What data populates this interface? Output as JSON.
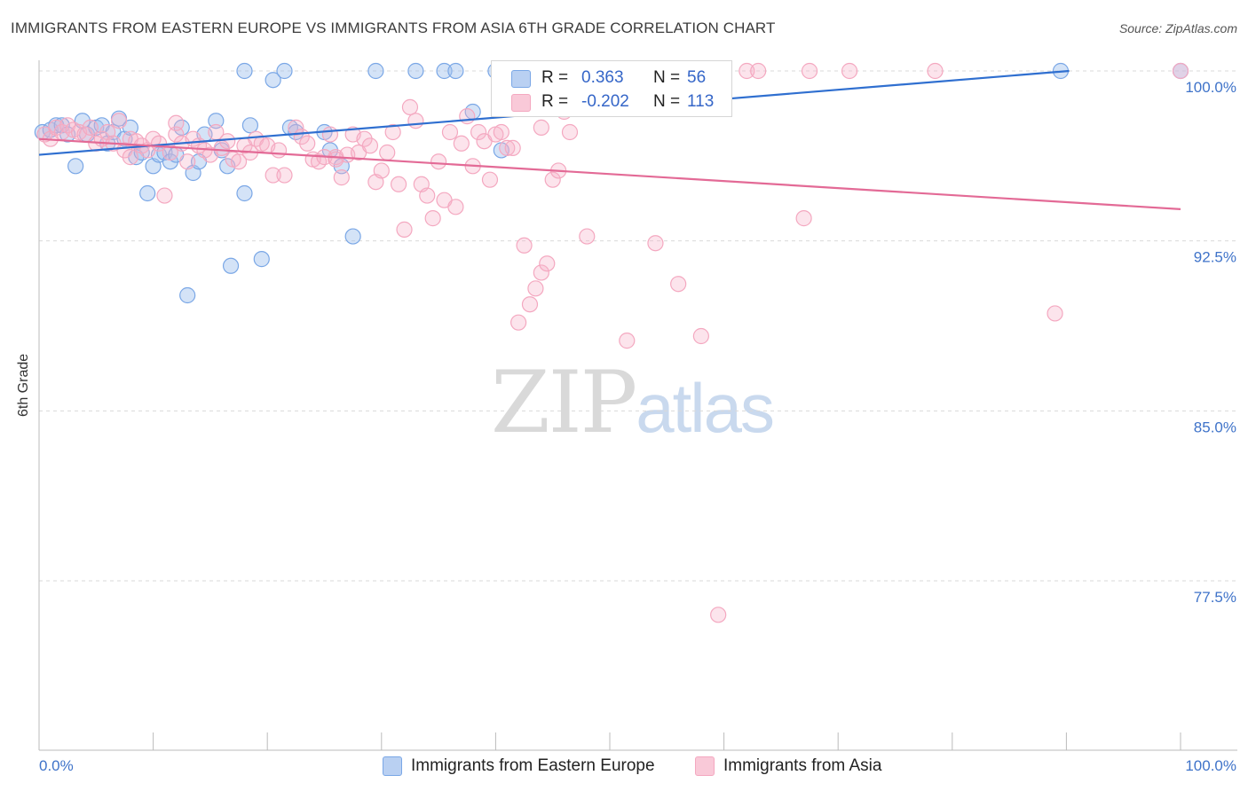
{
  "title": "IMMIGRANTS FROM EASTERN EUROPE VS IMMIGRANTS FROM ASIA 6TH GRADE CORRELATION CHART",
  "source": "Source: ZipAtlas.com",
  "watermark": {
    "zip": "ZIP",
    "atlas": "atlas"
  },
  "legend": {
    "rows": [
      {
        "r_label": "R =",
        "r_value": "0.363",
        "n_label": "N =",
        "n_value": "56"
      },
      {
        "r_label": "R =",
        "r_value": "-0.202",
        "n_label": "N =",
        "n_value": "113"
      }
    ]
  },
  "chart_data": {
    "type": "scatter",
    "ylabel": "6th Grade",
    "xlim": [
      0,
      100
    ],
    "ylim": [
      70,
      101
    ],
    "x_ticks": [
      "0.0%",
      "100.0%"
    ],
    "y_ticks": [
      {
        "value": 100,
        "label": "100.0%"
      },
      {
        "value": 92.5,
        "label": "92.5%"
      },
      {
        "value": 85,
        "label": "85.0%"
      },
      {
        "value": 77.5,
        "label": "77.5%"
      }
    ],
    "grid": true,
    "legend_position": "bottom",
    "series": [
      {
        "name": "Immigrants from Eastern Europe",
        "color": "#7aa7e6",
        "line_color": "#2f6fd0",
        "trend": {
          "x0": 0,
          "y0": 96.3,
          "x1": 100,
          "y1": 100.4
        },
        "points": [
          [
            0.3,
            97.3
          ],
          [
            1.0,
            97.4
          ],
          [
            1.5,
            97.6
          ],
          [
            2.0,
            97.6
          ],
          [
            2.5,
            97.2
          ],
          [
            3.2,
            95.8
          ],
          [
            3.8,
            97.8
          ],
          [
            4.2,
            97.2
          ],
          [
            5.0,
            97.5
          ],
          [
            5.5,
            97.6
          ],
          [
            6.0,
            96.8
          ],
          [
            6.5,
            97.3
          ],
          [
            7.0,
            97.9
          ],
          [
            7.5,
            97.0
          ],
          [
            8.0,
            97.5
          ],
          [
            8.5,
            96.2
          ],
          [
            9.0,
            96.4
          ],
          [
            9.5,
            94.6
          ],
          [
            10.0,
            95.8
          ],
          [
            10.5,
            96.3
          ],
          [
            11.0,
            96.4
          ],
          [
            11.5,
            96.0
          ],
          [
            12.0,
            96.3
          ],
          [
            12.5,
            97.5
          ],
          [
            13.0,
            90.1
          ],
          [
            13.5,
            95.5
          ],
          [
            14.0,
            96.0
          ],
          [
            14.5,
            97.2
          ],
          [
            15.5,
            97.8
          ],
          [
            16.0,
            96.5
          ],
          [
            16.5,
            95.8
          ],
          [
            16.8,
            91.4
          ],
          [
            18.0,
            94.6
          ],
          [
            18.5,
            97.6
          ],
          [
            19.5,
            91.7
          ],
          [
            20.5,
            99.6
          ],
          [
            21.5,
            100.0
          ],
          [
            18.0,
            100.0
          ],
          [
            22.0,
            97.5
          ],
          [
            22.5,
            97.3
          ],
          [
            25.0,
            97.3
          ],
          [
            25.5,
            96.5
          ],
          [
            26.5,
            95.8
          ],
          [
            27.5,
            92.7
          ],
          [
            29.5,
            100.0
          ],
          [
            33.0,
            100.0
          ],
          [
            35.5,
            100.0
          ],
          [
            36.5,
            100.0
          ],
          [
            38.0,
            98.2
          ],
          [
            40.0,
            100.0
          ],
          [
            40.5,
            100.0
          ],
          [
            40.5,
            96.5
          ],
          [
            45.0,
            100.0
          ],
          [
            53.0,
            99.7
          ],
          [
            89.5,
            100.0
          ],
          [
            100.0,
            100.0
          ]
        ]
      },
      {
        "name": "Immigrants from Asia",
        "color": "#f4a8c0",
        "line_color": "#e36a96",
        "trend": {
          "x0": 0,
          "y0": 97.0,
          "x1": 100,
          "y1": 93.9
        },
        "points": [
          [
            0.5,
            97.2
          ],
          [
            1.0,
            97.0
          ],
          [
            1.5,
            97.5
          ],
          [
            2.0,
            97.3
          ],
          [
            2.5,
            97.6
          ],
          [
            3.0,
            97.4
          ],
          [
            3.5,
            97.3
          ],
          [
            4.0,
            97.2
          ],
          [
            4.5,
            97.5
          ],
          [
            5.0,
            96.8
          ],
          [
            5.5,
            97.0
          ],
          [
            6.0,
            97.3
          ],
          [
            6.5,
            96.8
          ],
          [
            7.0,
            97.8
          ],
          [
            7.5,
            96.5
          ],
          [
            8.0,
            97.0
          ],
          [
            8.5,
            96.9
          ],
          [
            9.0,
            96.7
          ],
          [
            9.5,
            96.5
          ],
          [
            10.0,
            97.0
          ],
          [
            10.5,
            96.8
          ],
          [
            11.0,
            94.5
          ],
          [
            11.5,
            96.4
          ],
          [
            12.0,
            97.2
          ],
          [
            12.5,
            96.8
          ],
          [
            13.0,
            96.0
          ],
          [
            13.5,
            97.0
          ],
          [
            14.0,
            96.7
          ],
          [
            14.5,
            96.5
          ],
          [
            15.0,
            96.3
          ],
          [
            15.5,
            97.3
          ],
          [
            16.0,
            96.6
          ],
          [
            16.5,
            96.9
          ],
          [
            17.0,
            96.1
          ],
          [
            17.5,
            96.0
          ],
          [
            18.0,
            96.7
          ],
          [
            18.5,
            96.4
          ],
          [
            19.0,
            97.0
          ],
          [
            19.5,
            96.8
          ],
          [
            20.0,
            96.7
          ],
          [
            20.5,
            95.4
          ],
          [
            21.0,
            96.5
          ],
          [
            21.5,
            95.4
          ],
          [
            22.5,
            97.5
          ],
          [
            23.0,
            97.1
          ],
          [
            23.5,
            96.8
          ],
          [
            24.0,
            96.1
          ],
          [
            24.5,
            96.0
          ],
          [
            25.0,
            96.2
          ],
          [
            25.5,
            97.2
          ],
          [
            26.0,
            96.2
          ],
          [
            26.5,
            95.3
          ],
          [
            27.0,
            96.3
          ],
          [
            27.5,
            97.2
          ],
          [
            28.0,
            96.4
          ],
          [
            28.5,
            97.0
          ],
          [
            29.0,
            96.7
          ],
          [
            29.5,
            95.1
          ],
          [
            30.0,
            95.6
          ],
          [
            30.5,
            96.4
          ],
          [
            31.0,
            97.3
          ],
          [
            31.5,
            95.0
          ],
          [
            32.0,
            93.0
          ],
          [
            32.5,
            98.4
          ],
          [
            33.0,
            97.8
          ],
          [
            33.5,
            95.0
          ],
          [
            34.0,
            94.5
          ],
          [
            34.5,
            93.5
          ],
          [
            35.0,
            96.0
          ],
          [
            35.5,
            94.3
          ],
          [
            36.0,
            97.3
          ],
          [
            36.5,
            94.0
          ],
          [
            37.0,
            96.8
          ],
          [
            37.5,
            98.0
          ],
          [
            38.0,
            95.8
          ],
          [
            38.5,
            97.3
          ],
          [
            39.0,
            96.9
          ],
          [
            39.5,
            95.2
          ],
          [
            40.0,
            97.2
          ],
          [
            40.5,
            97.3
          ],
          [
            41.0,
            96.6
          ],
          [
            41.5,
            96.6
          ],
          [
            42.0,
            88.9
          ],
          [
            42.5,
            92.3
          ],
          [
            43.0,
            89.7
          ],
          [
            43.5,
            90.4
          ],
          [
            44.0,
            91.1
          ],
          [
            44.5,
            91.5
          ],
          [
            45.0,
            95.2
          ],
          [
            45.5,
            95.6
          ],
          [
            46.0,
            98.2
          ],
          [
            46.5,
            97.3
          ],
          [
            47.5,
            100.0
          ],
          [
            48.0,
            92.7
          ],
          [
            50.0,
            100.0
          ],
          [
            51.5,
            88.1
          ],
          [
            52.5,
            99.9
          ],
          [
            54.0,
            92.4
          ],
          [
            56.0,
            90.6
          ],
          [
            58.0,
            88.3
          ],
          [
            59.5,
            76.0
          ],
          [
            62.0,
            100.0
          ],
          [
            63.0,
            100.0
          ],
          [
            67.0,
            93.5
          ],
          [
            67.5,
            100.0
          ],
          [
            71.0,
            100.0
          ],
          [
            78.5,
            100.0
          ],
          [
            89.0,
            89.3
          ],
          [
            100.0,
            100.0
          ],
          [
            44.0,
            97.5
          ],
          [
            26.0,
            96.1
          ],
          [
            12.0,
            97.7
          ],
          [
            8.0,
            96.2
          ]
        ]
      }
    ]
  }
}
